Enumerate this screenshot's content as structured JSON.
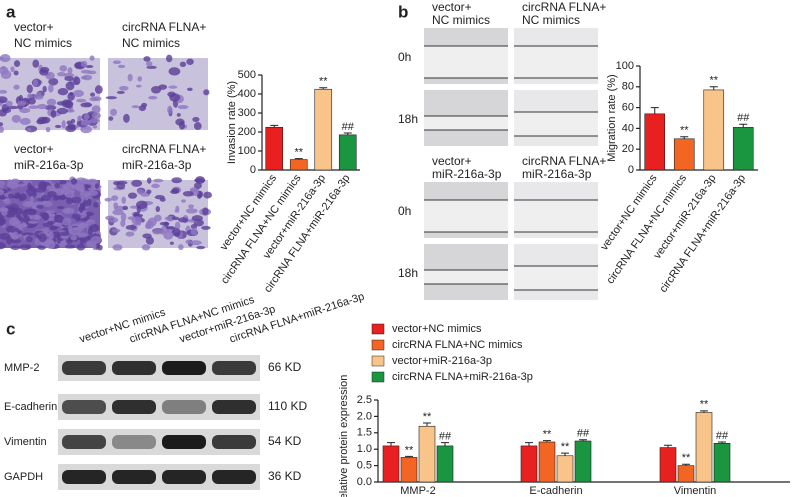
{
  "panel_labels": [
    "a",
    "b",
    "c"
  ],
  "invasion_images": [
    {
      "line1": "vector+",
      "line2": "NC mimics"
    },
    {
      "line1": "circRNA FLNA+",
      "line2": "NC mimics"
    },
    {
      "line1": "vector+",
      "line2": "miR-216a-3p"
    },
    {
      "line1": "circRNA FLNA+",
      "line2": "miR-216a-3p"
    }
  ],
  "migration_images": [
    {
      "line1": "vector+",
      "line2": "NC mimics"
    },
    {
      "line1": "circRNA FLNA+",
      "line2": "NC mimics"
    },
    {
      "line1": "vector+",
      "line2": "miR-216a-3p"
    },
    {
      "line1": "circRNA FLNA+",
      "line2": "miR-216a-3p"
    }
  ],
  "time_labels": [
    "0h",
    "18h"
  ],
  "blot": {
    "columns": [
      "vector+NC mimics",
      "circRNA FLNA+NC mimics",
      "vector+miR-216a-3p",
      "circRNA FLNA+miR-216a-3p"
    ],
    "rows": [
      {
        "protein": "MMP-2",
        "size": "66 KD"
      },
      {
        "protein": "E-cadherin",
        "size": "110 KD"
      },
      {
        "protein": "Vimentin",
        "size": "54 KD"
      },
      {
        "protein": "GAPDH",
        "size": "36 KD"
      }
    ]
  },
  "chart_data": [
    {
      "type": "bar",
      "y_label": "Invasion rate (%)",
      "categories": [
        "vector+NC mimics",
        "circRNA FLNA+NC mimics",
        "vector+miR-216a-3p",
        "circRNA FLNA+miR-216a-3p"
      ],
      "values": [
        225,
        55,
        425,
        185
      ],
      "errors": [
        10,
        5,
        8,
        10
      ],
      "annotations": [
        null,
        "**",
        "**",
        "##"
      ],
      "colors": [
        "#e8201f",
        "#f26522",
        "#f9c48a",
        "#1a9641"
      ],
      "ylim": [
        0,
        500
      ],
      "yticks": [
        0,
        100,
        200,
        300,
        400,
        500
      ]
    },
    {
      "type": "bar",
      "y_label": "Migration rate (%)",
      "categories": [
        "vector+NC mimics",
        "circRNA FLNA+NC mimics",
        "vector+miR-216a-3p",
        "circRNA FLNA+miR-216a-3p"
      ],
      "values": [
        54,
        30,
        77,
        41
      ],
      "errors": [
        6,
        2,
        3,
        3
      ],
      "annotations": [
        null,
        "**",
        "**",
        "##"
      ],
      "colors": [
        "#e8201f",
        "#f26522",
        "#f9c48a",
        "#1a9641"
      ],
      "ylim": [
        0,
        100
      ],
      "yticks": [
        0,
        20,
        40,
        60,
        80,
        100
      ]
    },
    {
      "type": "grouped_bar",
      "y_label": "Relative protein expression",
      "categories": [
        "MMP-2",
        "E-cadherin",
        "Vimentin"
      ],
      "series": [
        {
          "name": "vector+NC mimics",
          "color": "#e8201f",
          "values": [
            1.1,
            1.1,
            1.05
          ],
          "errors": [
            0.1,
            0.1,
            0.07
          ],
          "annotations": [
            null,
            null,
            null
          ]
        },
        {
          "name": "circRNA FLNA+NC mimics",
          "color": "#f26522",
          "values": [
            0.75,
            1.22,
            0.5
          ],
          "errors": [
            0.03,
            0.04,
            0.04
          ],
          "annotations": [
            "**",
            "**",
            "**"
          ]
        },
        {
          "name": "vector+miR-216a-3p",
          "color": "#f9c48a",
          "values": [
            1.7,
            0.8,
            2.12
          ],
          "errors": [
            0.1,
            0.08,
            0.05
          ],
          "annotations": [
            "**",
            "**",
            "**"
          ]
        },
        {
          "name": "circRNA FLNA+miR-216a-3p",
          "color": "#1a9641",
          "values": [
            1.1,
            1.25,
            1.18
          ],
          "errors": [
            0.1,
            0.04,
            0.04
          ],
          "annotations": [
            "##",
            "##",
            "##"
          ]
        }
      ],
      "legend": "top",
      "ylim": [
        0,
        2.5
      ],
      "yticks": [
        {
          "value": 0,
          "label": "0.0"
        },
        0.5,
        {
          "value": 1,
          "label": "1.0"
        },
        1.5,
        {
          "value": 2,
          "label": "2.0"
        },
        2.5
      ]
    }
  ]
}
